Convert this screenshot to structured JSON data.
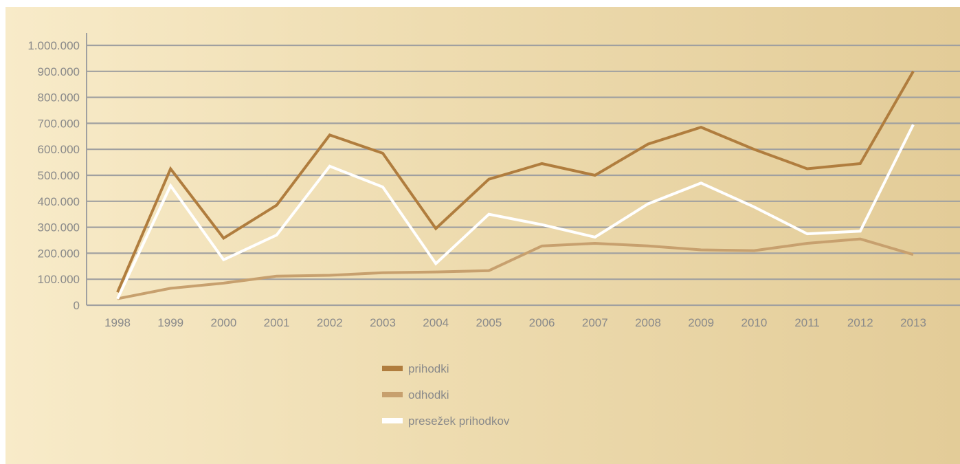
{
  "chart_data": {
    "type": "line",
    "title": "",
    "xlabel": "",
    "ylabel": "",
    "ylim": [
      0,
      1000000
    ],
    "yticks": [
      0,
      100000,
      200000,
      300000,
      400000,
      500000,
      600000,
      700000,
      800000,
      900000,
      1000000
    ],
    "ytick_labels": [
      "0",
      "100.000",
      "200.000",
      "300.000",
      "400.000",
      "500.000",
      "600.000",
      "700.000",
      "800.000",
      "900.000",
      "1.000.000"
    ],
    "grid": "horizontal",
    "legend_position": "bottom-center",
    "categories": [
      "1998",
      "1999",
      "2000",
      "2001",
      "2002",
      "2003",
      "2004",
      "2005",
      "2006",
      "2007",
      "2008",
      "2009",
      "2010",
      "2011",
      "2012",
      "2013"
    ],
    "series": [
      {
        "name": "prihodki",
        "color": "#b07d3e",
        "values": [
          50000,
          525000,
          258000,
          385000,
          655000,
          585000,
          295000,
          485000,
          545000,
          500000,
          620000,
          685000,
          600000,
          525000,
          545000,
          900000
        ]
      },
      {
        "name": "odhodki",
        "color": "#c7a06e",
        "values": [
          25000,
          65000,
          85000,
          112000,
          115000,
          125000,
          128000,
          133000,
          228000,
          238000,
          228000,
          213000,
          210000,
          238000,
          255000,
          195000
        ]
      },
      {
        "name": "presežek prihodkov",
        "color": "#ffffff",
        "values": [
          25000,
          460000,
          175000,
          270000,
          535000,
          455000,
          160000,
          350000,
          310000,
          262000,
          390000,
          470000,
          378000,
          275000,
          285000,
          695000
        ]
      }
    ]
  }
}
